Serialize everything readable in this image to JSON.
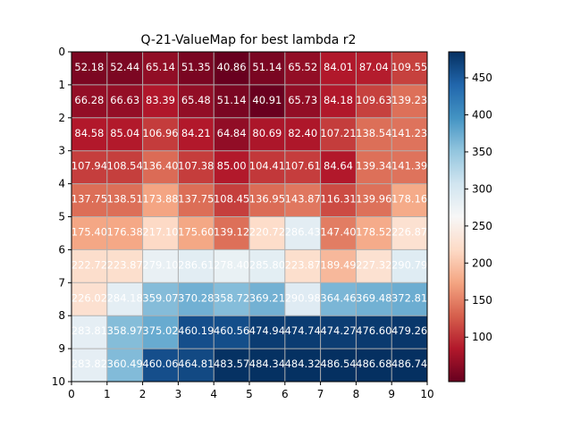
{
  "chart_data": {
    "type": "heatmap",
    "title": "Q-21-ValueMap for best lambda r2",
    "xlabel": "",
    "ylabel": "",
    "xlim": [
      0,
      10
    ],
    "ylim": [
      10,
      0
    ],
    "x_ticks": [
      "0",
      "1",
      "2",
      "3",
      "4",
      "5",
      "6",
      "7",
      "8",
      "9",
      "10"
    ],
    "y_ticks": [
      "0",
      "1",
      "2",
      "3",
      "4",
      "5",
      "6",
      "7",
      "8",
      "9",
      "10"
    ],
    "grid": true,
    "colormap": "RdBu",
    "colorbar": {
      "min": 40,
      "max": 485,
      "ticks": [
        "100",
        "150",
        "200",
        "250",
        "300",
        "350",
        "400",
        "450"
      ],
      "tick_values": [
        100,
        150,
        200,
        250,
        300,
        350,
        400,
        450
      ]
    },
    "values": [
      [
        52.18,
        52.44,
        65.14,
        51.35,
        40.86,
        51.14,
        65.52,
        84.01,
        87.04,
        109.55
      ],
      [
        66.28,
        66.63,
        83.39,
        65.48,
        51.14,
        40.91,
        65.73,
        84.18,
        109.63,
        139.23
      ],
      [
        84.58,
        85.04,
        106.96,
        84.21,
        64.84,
        80.69,
        82.4,
        107.21,
        138.54,
        141.23
      ],
      [
        107.94,
        108.54,
        136.4,
        107.38,
        85.0,
        104.41,
        107.61,
        84.64,
        139.34,
        141.39
      ],
      [
        137.75,
        138.51,
        173.88,
        137.75,
        108.45,
        136.95,
        143.87,
        116.31,
        139.96,
        178.16
      ],
      [
        175.4,
        176.38,
        217.1,
        175.6,
        139.12,
        220.72,
        286.43,
        147.4,
        178.52,
        226.87
      ],
      [
        222.72,
        223.87,
        279.1,
        286.61,
        278.4,
        285.8,
        223.87,
        189.49,
        227.32,
        290.79
      ],
      [
        226.02,
        284.18,
        359.07,
        370.28,
        358.72,
        369.21,
        290.98,
        364.46,
        369.48,
        372.81
      ],
      [
        283.81,
        358.97,
        375.02,
        460.19,
        460.56,
        474.94,
        474.74,
        474.27,
        476.6,
        479.26
      ],
      [
        283.82,
        360.49,
        460.06,
        464.81,
        483.57,
        484.34,
        484.32,
        486.54,
        486.68,
        486.74
      ]
    ],
    "value_labels": [
      [
        "52.18",
        "52.44",
        "65.14",
        "51.35",
        "40.86",
        "51.14",
        "65.52",
        "84.01",
        "87.04",
        "109.55"
      ],
      [
        "66.28",
        "66.63",
        "83.39",
        "65.48",
        "51.14",
        "40.91",
        "65.73",
        "84.18",
        "109.63",
        "139.23"
      ],
      [
        "84.58",
        "85.04",
        "106.96",
        "84.21",
        "64.84",
        "80.69",
        "82.40",
        "107.21",
        "138.54",
        "141.23"
      ],
      [
        "107.94",
        "108.54",
        "136.40",
        "107.38",
        "85.00",
        "104.41",
        "107.61",
        "84.64",
        "139.34",
        "141.39"
      ],
      [
        "137.75",
        "138.51",
        "173.88",
        "137.75",
        "108.45",
        "136.95",
        "143.87",
        "116.31",
        "139.96",
        "178.16"
      ],
      [
        "175.40",
        "176.38",
        "217.10",
        "175.60",
        "139.12",
        "220.72",
        "286.43",
        "147.40",
        "178.52",
        "226.87"
      ],
      [
        "222.72",
        "223.87",
        "279.10",
        "286.61",
        "278.40",
        "285.80",
        "223.87",
        "189.49",
        "227.32",
        "290.79"
      ],
      [
        "226.02",
        "284.18",
        "359.07",
        "370.28",
        "358.72",
        "369.21",
        "290.98",
        "364.46",
        "369.48",
        "372.81"
      ],
      [
        "283.81",
        "358.97",
        "375.02",
        "460.19",
        "460.56",
        "474.94",
        "474.74",
        "474.27",
        "476.60",
        "479.26"
      ],
      [
        "283.82",
        "360.49",
        "460.06",
        "464.81",
        "483.57",
        "484.34",
        "484.32",
        "486.54",
        "486.68",
        "486.74"
      ]
    ]
  }
}
